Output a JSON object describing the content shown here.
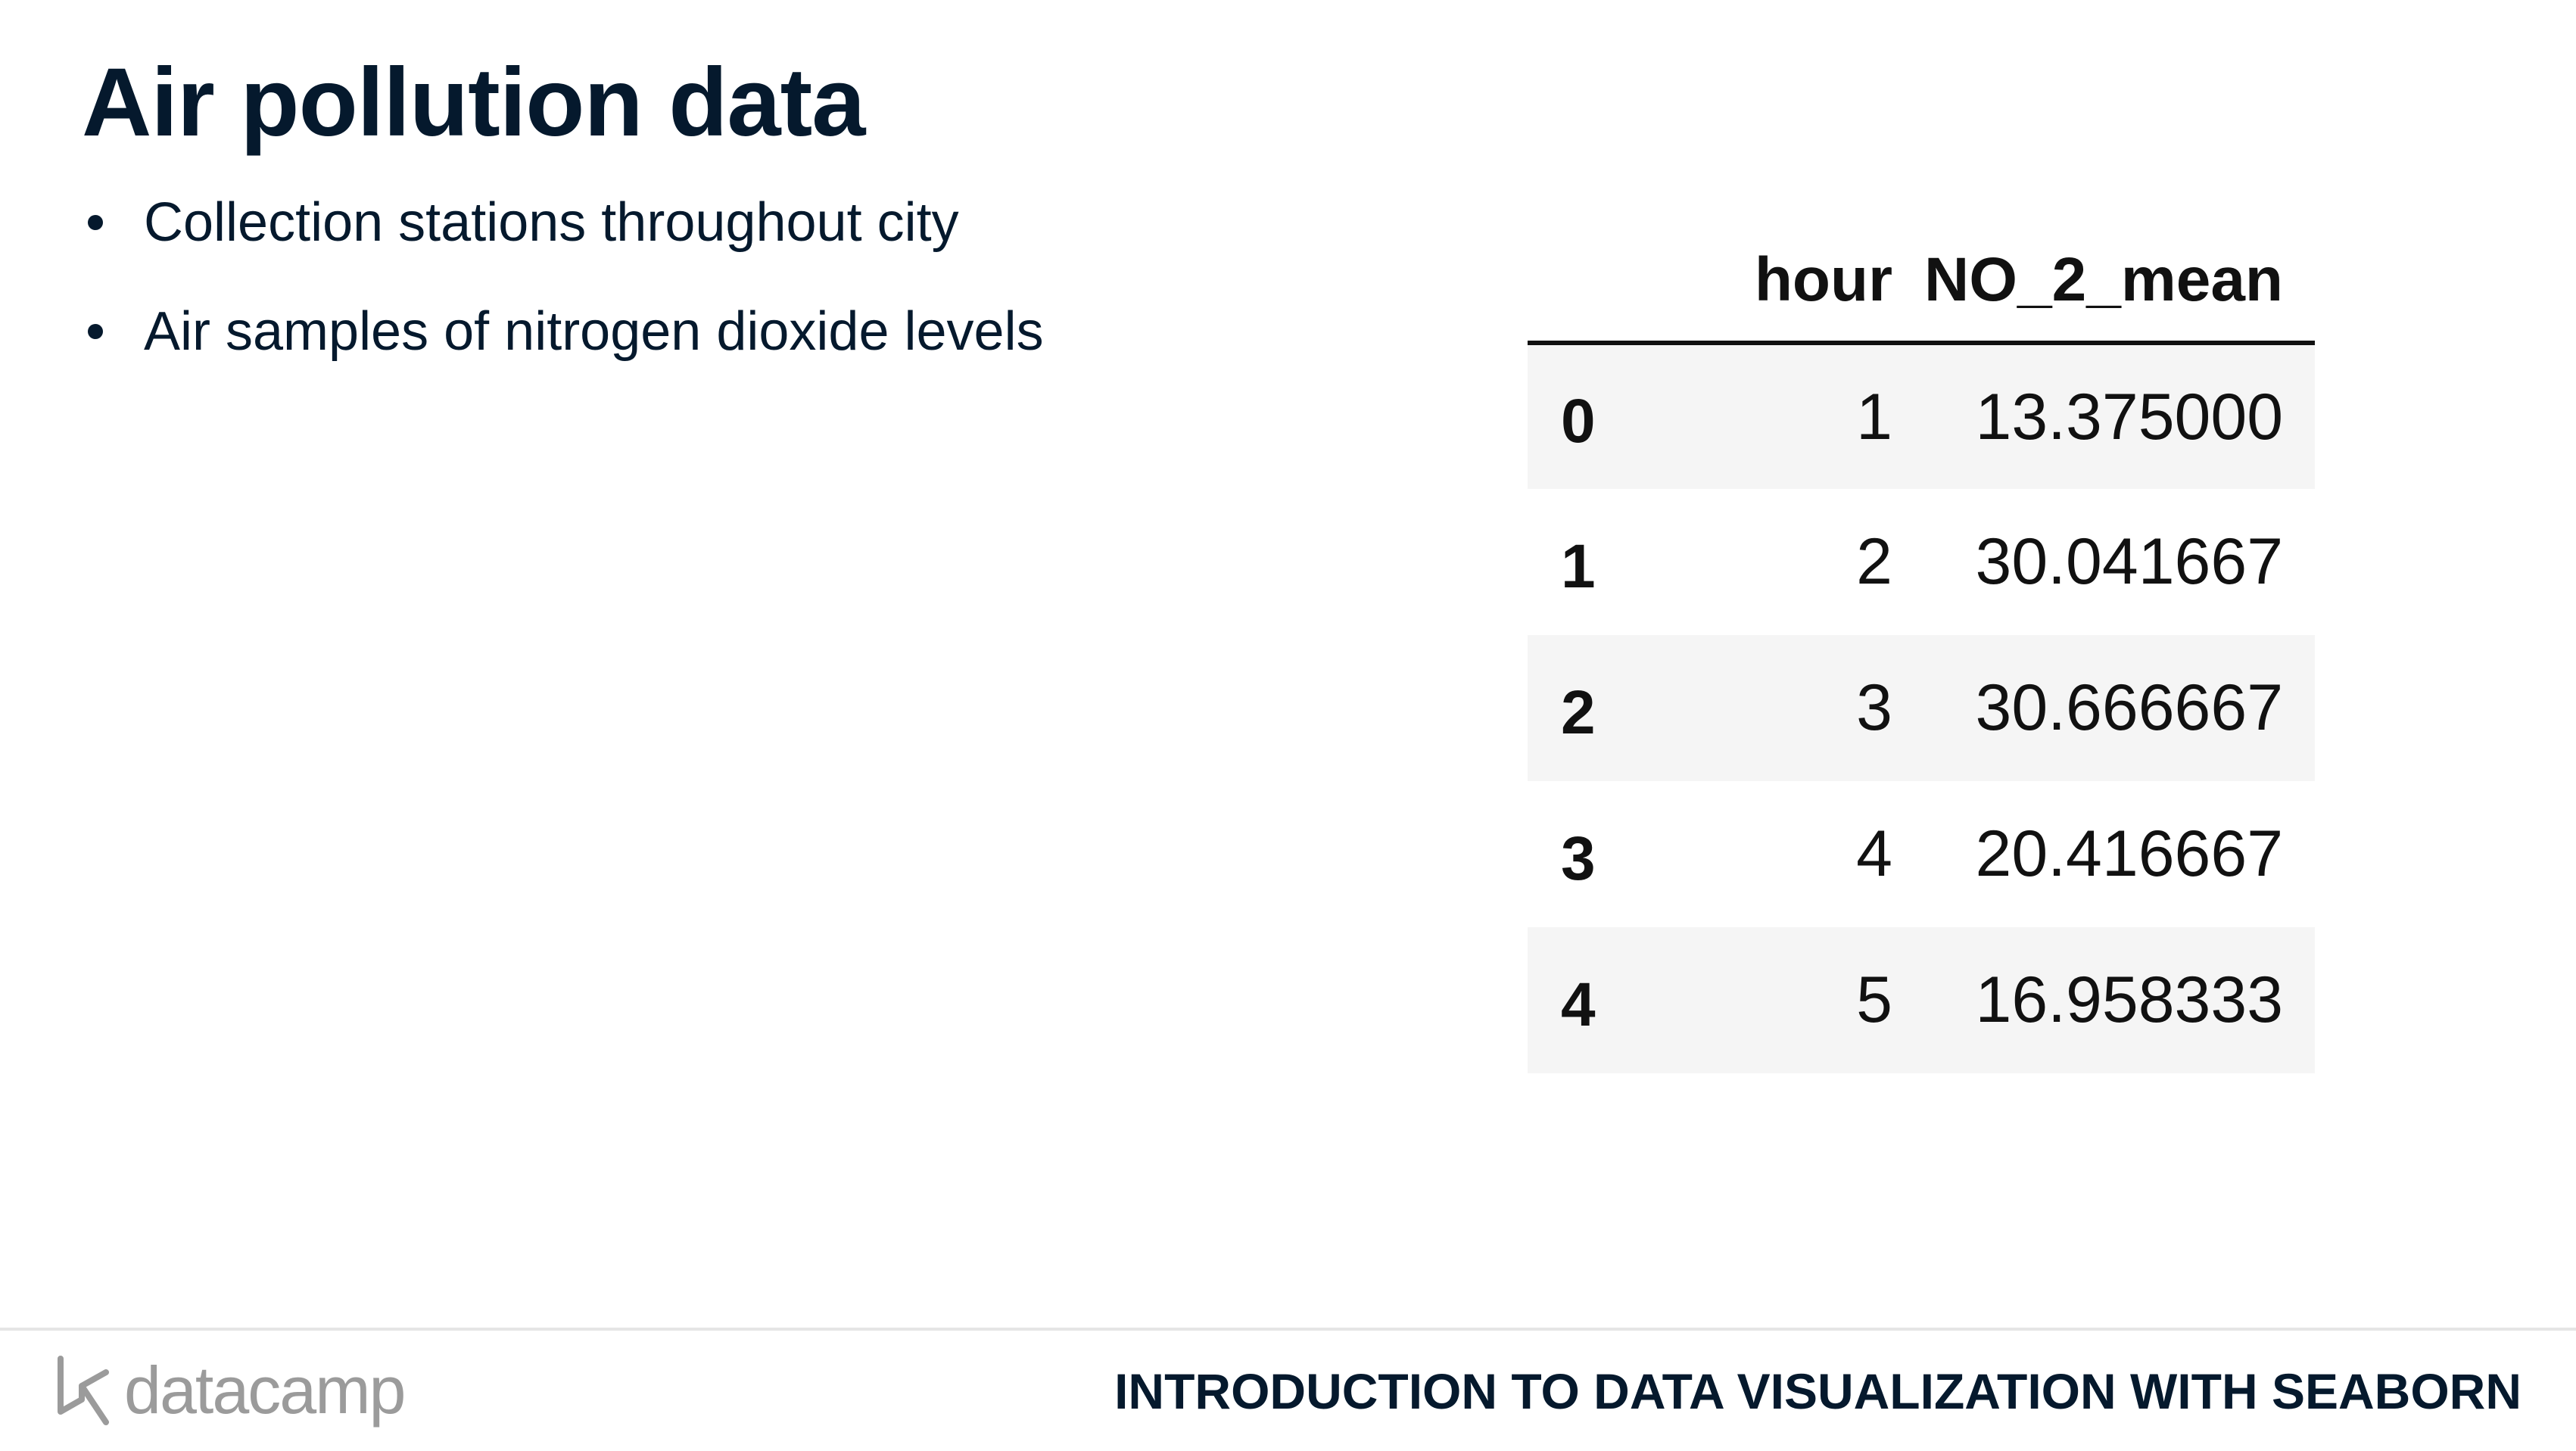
{
  "slide": {
    "title": "Air pollution data",
    "bullets": [
      "Collection stations throughout city",
      "Air samples of nitrogen dioxide levels"
    ]
  },
  "table": {
    "columns": [
      "",
      "hour",
      "NO_2_mean"
    ],
    "rows": [
      {
        "index": "0",
        "hour": "1",
        "NO_2_mean": "13.375000"
      },
      {
        "index": "1",
        "hour": "2",
        "NO_2_mean": "30.041667"
      },
      {
        "index": "2",
        "hour": "3",
        "NO_2_mean": "30.666667"
      },
      {
        "index": "3",
        "hour": "4",
        "NO_2_mean": "20.416667"
      },
      {
        "index": "4",
        "hour": "5",
        "NO_2_mean": "16.958333"
      }
    ]
  },
  "footer": {
    "brand": "datacamp",
    "brand_icon": "datacamp-logo-icon",
    "course_title": "INTRODUCTION TO DATA VISUALIZATION WITH SEABORN"
  },
  "colors": {
    "title_text": "#05192d",
    "table_stripe": "#f5f5f5",
    "brand_gray": "#9b9b9b"
  }
}
